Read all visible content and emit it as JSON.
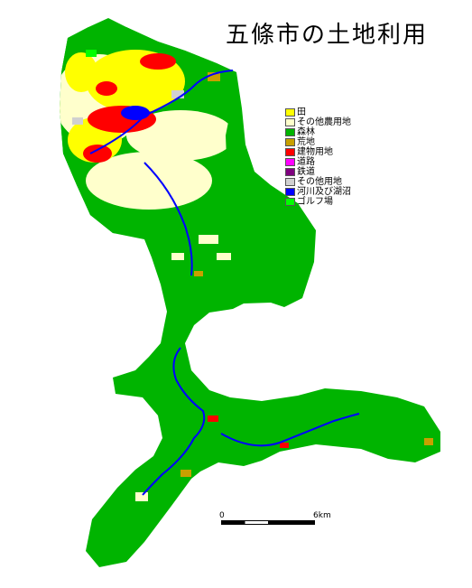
{
  "map": {
    "title": "五條市の土地利用"
  },
  "legend": {
    "items": [
      {
        "label": "田",
        "color": "#ffff00"
      },
      {
        "label": "その他農用地",
        "color": "#ffffcc"
      },
      {
        "label": "森林",
        "color": "#00b400"
      },
      {
        "label": "荒地",
        "color": "#c8a000"
      },
      {
        "label": "建物用地",
        "color": "#ff0000"
      },
      {
        "label": "道路",
        "color": "#ff00ff"
      },
      {
        "label": "鉄道",
        "color": "#7f007f"
      },
      {
        "label": "その他用地",
        "color": "#d0d0d0"
      },
      {
        "label": "河川及び湖沼",
        "color": "#0000ff"
      },
      {
        "label": "ゴルフ場",
        "color": "#00ff00"
      }
    ]
  },
  "scale": {
    "start_label": "0",
    "end_label": "6km"
  }
}
